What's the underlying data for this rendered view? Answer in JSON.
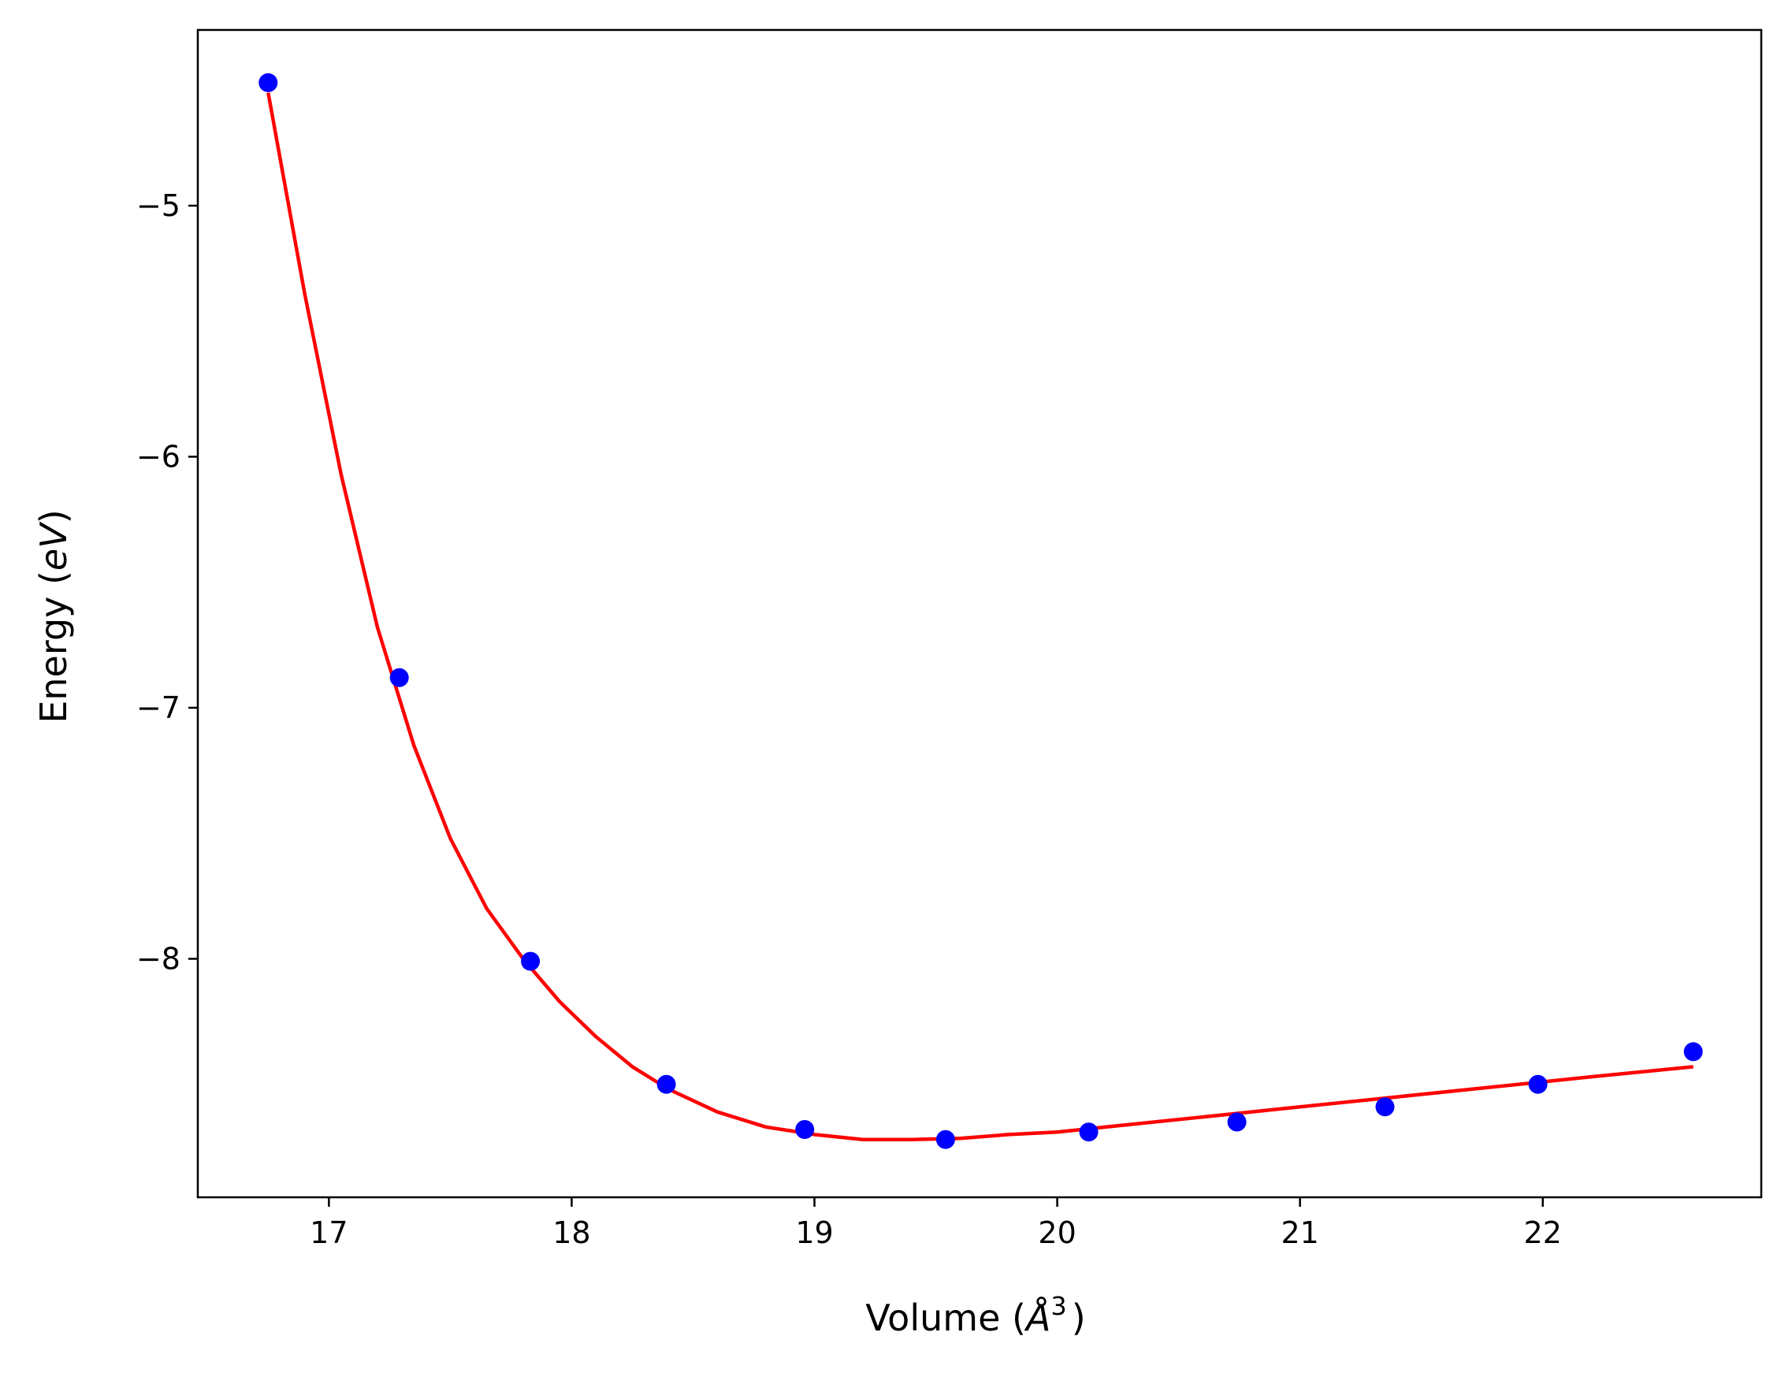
{
  "chart_data": {
    "type": "scatter",
    "xlabel": {
      "pre": "Volume (",
      "sym": "Å",
      "sup": "3",
      "post": ")"
    },
    "ylabel": {
      "pre": "Energy (",
      "sym": "eV",
      "post": ")"
    },
    "xlim": [
      16.46,
      22.9
    ],
    "ylim": [
      -8.95,
      -4.3
    ],
    "xticks": [
      17,
      18,
      19,
      20,
      21,
      22
    ],
    "yticks": [
      -5,
      -6,
      -7,
      -8
    ],
    "ytick_labels": [
      "−5",
      "−6",
      "−7",
      "−8"
    ],
    "grid": false,
    "series": [
      {
        "kind": "points",
        "color": "#0000ff",
        "x": [
          16.75,
          17.29,
          17.83,
          18.39,
          18.96,
          19.54,
          20.13,
          20.74,
          21.35,
          21.98,
          22.62
        ],
        "y": [
          -4.51,
          -6.88,
          -8.01,
          -8.5,
          -8.68,
          -8.72,
          -8.69,
          -8.65,
          -8.59,
          -8.5,
          -8.37
        ]
      },
      {
        "kind": "fit",
        "color": "#ff0000",
        "x": [
          16.75,
          16.9,
          17.05,
          17.2,
          17.35,
          17.5,
          17.65,
          17.8,
          17.95,
          18.1,
          18.25,
          18.4,
          18.6,
          18.8,
          19.0,
          19.2,
          19.4,
          19.6,
          19.8,
          20.0,
          20.3,
          20.6,
          21.0,
          21.4,
          21.8,
          22.2,
          22.62
        ],
        "y": [
          -4.55,
          -5.35,
          -6.07,
          -6.68,
          -7.15,
          -7.52,
          -7.8,
          -8.0,
          -8.17,
          -8.31,
          -8.43,
          -8.52,
          -8.61,
          -8.67,
          -8.7,
          -8.72,
          -8.72,
          -8.715,
          -8.7,
          -8.69,
          -8.66,
          -8.63,
          -8.59,
          -8.55,
          -8.51,
          -8.47,
          -8.43
        ]
      }
    ]
  }
}
